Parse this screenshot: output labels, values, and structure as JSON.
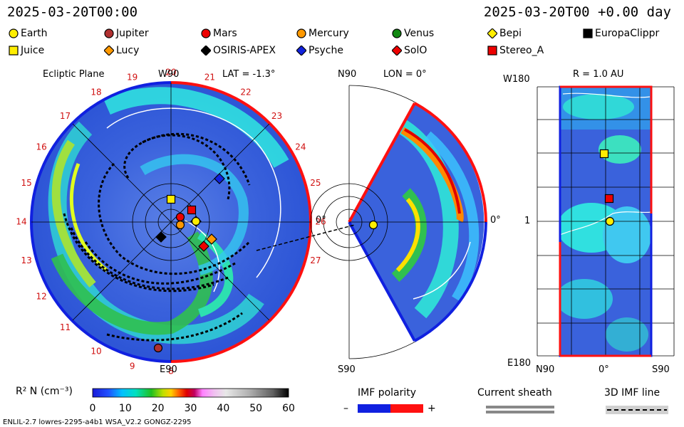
{
  "header": {
    "left_timestamp": "2025-03-20T00:00",
    "right_timestamp": "2025-03-20T00 +0.00 day"
  },
  "legend": [
    {
      "name": "Earth",
      "marker": "circle",
      "color": "#ffee00"
    },
    {
      "name": "Jupiter",
      "marker": "circle",
      "color": "#b03030"
    },
    {
      "name": "Mars",
      "marker": "circle",
      "color": "#ee0000"
    },
    {
      "name": "Mercury",
      "marker": "circle",
      "color": "#ff9900"
    },
    {
      "name": "Venus",
      "marker": "circle",
      "color": "#118811"
    },
    {
      "name": "Bepi",
      "marker": "diamond",
      "color": "#ffee00"
    },
    {
      "name": "EuropaClippr",
      "marker": "square",
      "color": "#000000"
    },
    {
      "name": "Juice",
      "marker": "square",
      "color": "#ffee00"
    },
    {
      "name": "Lucy",
      "marker": "diamond",
      "color": "#ff9900"
    },
    {
      "name": "OSIRIS-APEX",
      "marker": "diamond",
      "color": "#000000"
    },
    {
      "name": "Psyche",
      "marker": "diamond",
      "color": "#1122dd"
    },
    {
      "name": "SolO",
      "marker": "diamond",
      "color": "#ee0000"
    },
    {
      "name": "Stereo_A",
      "marker": "square",
      "color": "#ee0000"
    }
  ],
  "ecliptic": {
    "title": "Ecliptic Plane",
    "top_label": "W90",
    "lat_label": "LAT = -1.3°",
    "bottom_label": "E90",
    "right_label": "0°",
    "hour_ticks": [
      "18",
      "19",
      "20",
      "21",
      "22",
      "23",
      "24",
      "25",
      "26",
      "27"
    ],
    "left_ticks": [
      "17",
      "16",
      "15",
      "14",
      "13",
      "12",
      "11",
      "10",
      "9",
      "8"
    ]
  },
  "meridional": {
    "top_label": "N90",
    "lon_label": "LON = 0°",
    "bottom_label": "S90",
    "right_label": "0°"
  },
  "radial": {
    "top_left_label": "W180",
    "r_label": "R = 1.0 AU",
    "mid_label": "1",
    "bottom_left_label": "E180",
    "x_labels": [
      "N90",
      "0°",
      "S90"
    ]
  },
  "colorbar": {
    "label": "R² N (cm⁻³)",
    "ticks": [
      "0",
      "10",
      "20",
      "30",
      "40",
      "50",
      "60"
    ]
  },
  "imf": {
    "title": "IMF polarity",
    "minus": "–",
    "plus": "+"
  },
  "sheath_title": "Current sheath",
  "imf_line_title": "3D IMF line",
  "footer_left": "ENLIL-2.7 lowres-2295-a4b1 WSA_V2.2 GONGZ-2295",
  "chart_data": {
    "type": "heatmap",
    "title": "Ecliptic Plane",
    "colorbar_range": [
      0,
      60
    ],
    "colorbar_ticks": [
      0,
      10,
      20,
      30,
      40,
      50,
      60
    ],
    "quantity": "R² N (cm⁻³)",
    "radial_distance_AU": 1.0,
    "lat_deg": -1.3,
    "lon_deg": 0
  }
}
